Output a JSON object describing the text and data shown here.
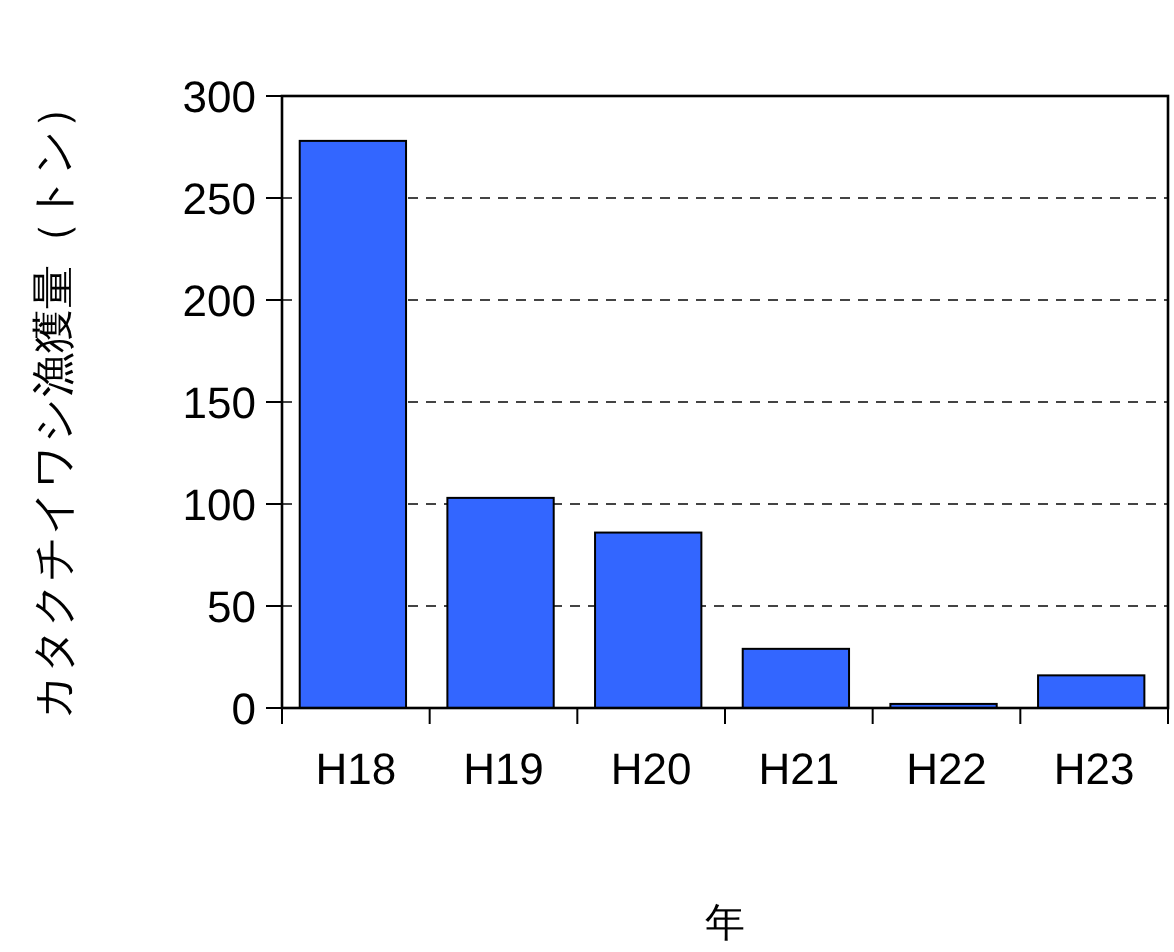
{
  "chart_data": {
    "type": "bar",
    "categories": [
      "H18",
      "H19",
      "H20",
      "H21",
      "H22",
      "H23"
    ],
    "values": [
      278,
      103,
      86,
      29,
      2,
      16
    ],
    "color": "#3366ff",
    "xlabel": "年",
    "ylabel": "カタクチイワシ漁獲量（トン）",
    "ylim": [
      0,
      300
    ],
    "yticks": [
      0,
      50,
      100,
      150,
      200,
      250,
      300
    ],
    "grid": "y"
  }
}
